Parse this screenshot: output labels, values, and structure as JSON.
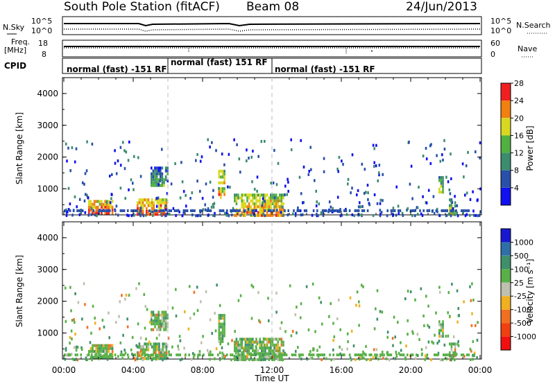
{
  "header": {
    "station": "South Pole Station (fitACF)",
    "beam": "Beam 08",
    "date": "24/Jun/2013"
  },
  "strip_labels": {
    "nsky": "N.Sky",
    "nsky_ticks": [
      "10^5",
      "10^0"
    ],
    "nsearch": "N.Search",
    "nsearch_ticks": [
      "10^5",
      "10^0"
    ],
    "freq_line1": "Freq.",
    "freq_line2": "[MHz]",
    "freq_ticks": [
      "18",
      "8"
    ],
    "nave": "Nave",
    "nave_ticks": [
      "60",
      "0"
    ],
    "cpid": "CPID"
  },
  "cpid_segments": [
    {
      "label": "normal (fast) -151 RF",
      "start_hour": 0,
      "end_hour": 6
    },
    {
      "label": "normal (fast) 151 RF",
      "start_hour": 6,
      "end_hour": 12
    },
    {
      "label": "normal (fast) -151 RF",
      "start_hour": 12,
      "end_hour": 24
    }
  ],
  "chart_data": [
    {
      "type": "heatmap",
      "quantity": "power",
      "ylabel": "Slant Range [km]",
      "xlabel": "Time UT",
      "xlim": [
        0,
        24
      ],
      "ylim": [
        180,
        4500
      ],
      "y_ticks": [
        "1000",
        "2000",
        "3000",
        "4000"
      ],
      "colorbar_label": "Power [dB]",
      "colorbar_ticks": [
        "4",
        "8",
        "12",
        "16",
        "20",
        "24",
        "28"
      ],
      "colors": [
        "#1010f0",
        "#2850a8",
        "#3c8c6e",
        "#50b040",
        "#d8d820",
        "#f08010",
        "#f02020"
      ],
      "patches": [
        {
          "t0": 1.4,
          "t1": 2.8,
          "r0": 200,
          "r1": 650,
          "level": 6
        },
        {
          "t0": 4.2,
          "t1": 5.9,
          "r0": 200,
          "r1": 700,
          "level": 6
        },
        {
          "t0": 8.9,
          "t1": 9.3,
          "r0": 700,
          "r1": 1600,
          "level": 5
        },
        {
          "t0": 9.8,
          "t1": 12.7,
          "r0": 200,
          "r1": 850,
          "level": 5
        },
        {
          "t0": 5.0,
          "t1": 6.0,
          "r0": 1100,
          "r1": 1700,
          "level": 3
        },
        {
          "t0": 21.6,
          "t1": 21.9,
          "r0": 900,
          "r1": 1400,
          "level": 4
        },
        {
          "t0": 22.2,
          "t1": 22.6,
          "r0": 200,
          "r1": 700,
          "level": 4
        }
      ]
    },
    {
      "type": "heatmap",
      "quantity": "velocity",
      "ylabel": "Slant Range [km]",
      "xlabel": "Time UT",
      "xlim": [
        0,
        24
      ],
      "ylim": [
        180,
        4500
      ],
      "y_ticks": [
        "1000",
        "2000",
        "3000",
        "4000"
      ],
      "x_ticks": [
        "00:00",
        "04:00",
        "08:00",
        "12:00",
        "16:00",
        "20:00",
        "00:00"
      ],
      "colorbar_label": "Velocity [m s⁻¹]",
      "colorbar_ticks": [
        "1000",
        "500",
        "100",
        "25",
        "-25",
        "-100",
        "-500",
        "-1000"
      ],
      "colors": [
        "#1818d0",
        "#2f6fa8",
        "#3f8f6a",
        "#5ab048",
        "#c0c0b0",
        "#f0b020",
        "#f07020",
        "#f04010",
        "#f01010"
      ]
    }
  ]
}
